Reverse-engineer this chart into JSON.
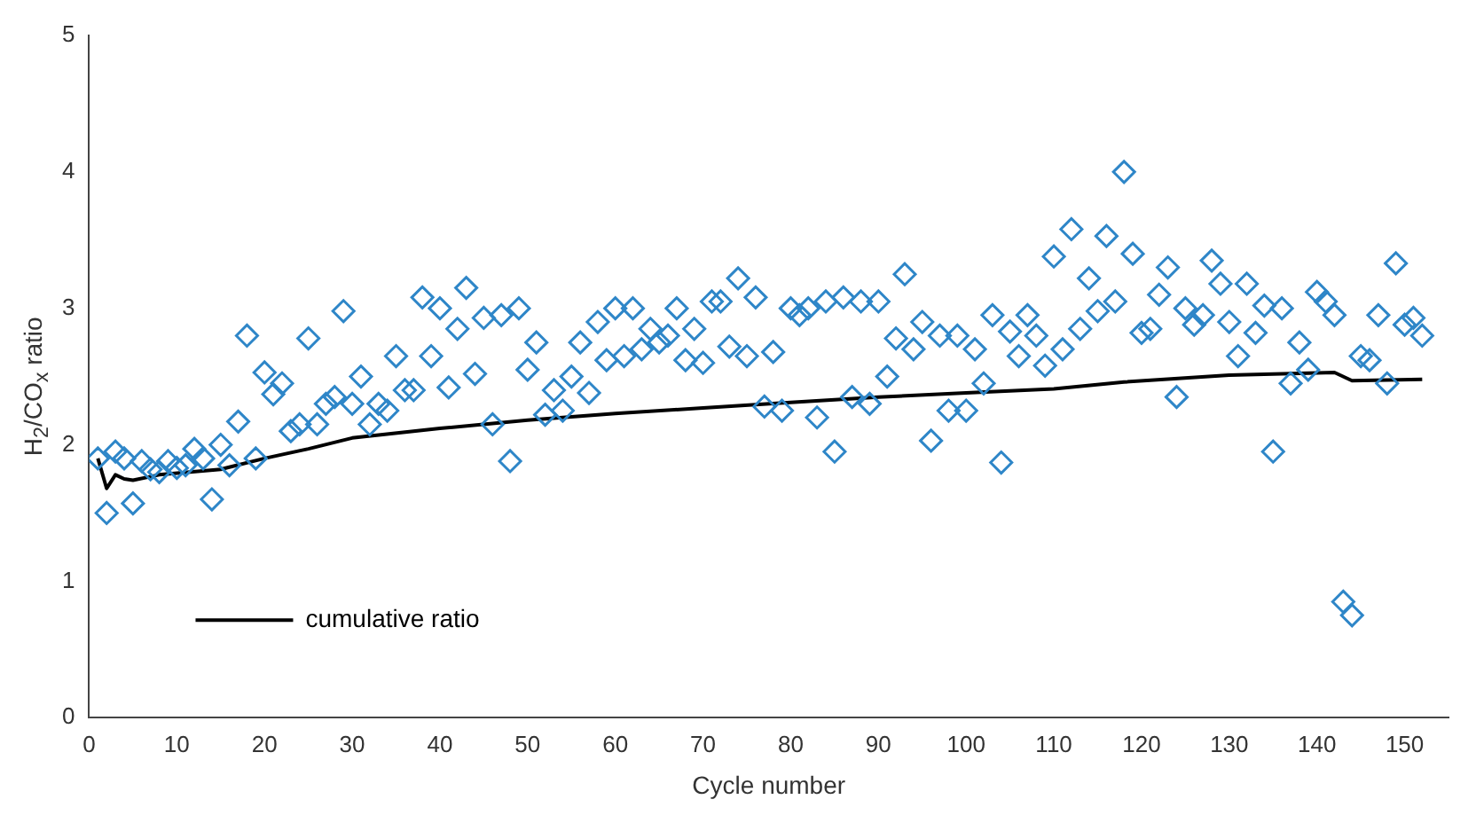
{
  "chart_data": {
    "type": "scatter",
    "xlabel": "Cycle number",
    "ylabel": "H$_{2}$/CO$_{x}$ ratio",
    "xlim": [
      0,
      155
    ],
    "xticks": [
      0,
      10,
      20,
      30,
      40,
      50,
      60,
      70,
      80,
      90,
      100,
      110,
      120,
      130,
      140,
      150
    ],
    "ylim": [
      0,
      5
    ],
    "yticks": [
      0,
      1,
      2,
      3,
      4,
      5
    ],
    "grid": false,
    "legend": "bottom left",
    "marker": "diamond",
    "series": [
      {
        "color": "#2e86c8",
        "x": [
          1,
          2,
          3,
          4,
          5,
          6,
          7,
          8,
          9,
          10,
          11,
          12,
          13,
          14,
          15,
          16,
          17,
          18,
          19,
          20,
          21,
          22,
          23,
          24,
          25,
          26,
          27,
          28,
          29,
          30,
          31,
          32,
          33,
          34,
          35,
          36,
          37,
          38,
          39,
          40,
          41,
          42,
          43,
          44,
          45,
          46,
          47,
          48,
          49,
          50,
          51,
          52,
          53,
          54,
          55,
          56,
          57,
          58,
          59,
          60,
          61,
          62,
          63,
          64,
          65,
          66,
          67,
          68,
          69,
          70,
          71,
          72,
          73,
          74,
          75,
          76,
          77,
          78,
          79,
          80,
          81,
          82,
          83,
          84,
          85,
          86,
          87,
          88,
          89,
          90,
          91,
          92,
          93,
          94,
          95,
          96,
          97,
          98,
          99,
          100,
          101,
          102,
          103,
          104,
          105,
          106,
          107,
          108,
          109,
          110,
          111,
          112,
          113,
          114,
          115,
          116,
          117,
          118,
          119,
          120,
          121,
          122,
          123,
          124,
          125,
          126,
          127,
          128,
          129,
          130,
          131,
          132,
          133,
          134,
          135,
          136,
          137,
          138,
          139,
          140,
          141,
          142,
          143,
          144,
          145,
          146,
          147,
          148,
          149,
          150,
          151,
          152
        ],
        "values": [
          1.9,
          1.5,
          1.95,
          1.9,
          1.57,
          1.88,
          1.82,
          1.8,
          1.88,
          1.83,
          1.85,
          1.97,
          1.9,
          1.6,
          2.0,
          1.85,
          2.17,
          2.8,
          1.9,
          2.53,
          2.37,
          2.45,
          2.1,
          2.15,
          2.78,
          2.15,
          2.3,
          2.35,
          2.98,
          2.3,
          2.5,
          2.15,
          2.3,
          2.25,
          2.65,
          2.4,
          2.4,
          3.08,
          2.65,
          3.0,
          2.42,
          2.85,
          3.15,
          2.52,
          2.93,
          2.15,
          2.95,
          1.88,
          3.0,
          2.55,
          2.75,
          2.22,
          2.4,
          2.25,
          2.5,
          2.75,
          2.38,
          2.9,
          2.62,
          3.0,
          2.65,
          3.0,
          2.7,
          2.85,
          2.75,
          2.8,
          3.0,
          2.62,
          2.85,
          2.6,
          3.05,
          3.05,
          2.72,
          3.22,
          2.65,
          3.08,
          2.28,
          2.68,
          2.25,
          3.0,
          2.95,
          3.0,
          2.2,
          3.05,
          1.95,
          3.08,
          2.35,
          3.05,
          2.3,
          3.05,
          2.5,
          2.78,
          3.25,
          2.7,
          2.9,
          2.03,
          2.8,
          2.25,
          2.8,
          2.25,
          2.7,
          2.45,
          2.95,
          1.87,
          2.83,
          2.65,
          2.95,
          2.8,
          2.58,
          3.38,
          2.7,
          3.58,
          2.85,
          3.22,
          2.98,
          3.53,
          3.05,
          4.0,
          3.4,
          2.82,
          2.85,
          3.1,
          3.3,
          2.35,
          3.0,
          2.88,
          2.95,
          3.35,
          3.18,
          2.9,
          2.65,
          3.18,
          2.82,
          3.02,
          1.95,
          3.0,
          2.45,
          2.75,
          2.55,
          3.12,
          3.05,
          2.95,
          0.85,
          0.75,
          2.65,
          2.62,
          2.95,
          2.45,
          3.33,
          2.88,
          2.93,
          2.8
        ]
      },
      {
        "type": "line",
        "name": "cumulative ratio",
        "color": "#000000",
        "marker": "none",
        "x": [
          1,
          2,
          3,
          4,
          5,
          8,
          15,
          20,
          25,
          30,
          40,
          50,
          60,
          70,
          80,
          90,
          100,
          110,
          118,
          130,
          142,
          144,
          152
        ],
        "values": [
          1.9,
          1.68,
          1.78,
          1.75,
          1.74,
          1.78,
          1.82,
          1.9,
          1.97,
          2.05,
          2.12,
          2.18,
          2.23,
          2.27,
          2.31,
          2.35,
          2.38,
          2.41,
          2.46,
          2.51,
          2.53,
          2.47,
          2.48
        ]
      }
    ]
  }
}
